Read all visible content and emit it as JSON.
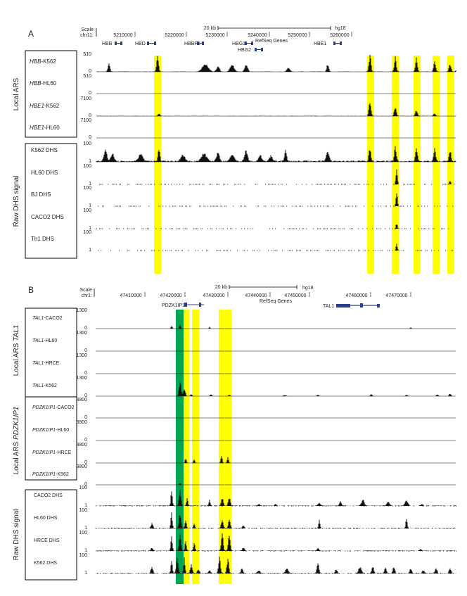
{
  "panel_a": {
    "letter": "A",
    "scale_label": "Scale",
    "chrom_label": "chr11:",
    "scale_bar_label": "20 kb",
    "assembly": "hg18",
    "coords": [
      "5210000",
      "5220000",
      "5230000",
      "5240000",
      "5250000",
      "5260000"
    ],
    "refseq_label": "RefSeq Genes",
    "genes": [
      "HBB",
      "HBD",
      "HBBP1",
      "HBG1",
      "HBG2",
      "HBE1"
    ],
    "group_labels": [
      "Local ARS",
      "Raw DHS signal"
    ],
    "tracks": [
      {
        "gene": "HBB",
        "cell": "-K562",
        "max": "510",
        "min": "0"
      },
      {
        "gene": "HBB",
        "cell": "-HL60",
        "max": "510",
        "min": "0"
      },
      {
        "gene": "HBE1",
        "cell": "-K562",
        "max": "7100",
        "min": "0"
      },
      {
        "gene": "HBE1",
        "cell": "-HL60",
        "max": "7100",
        "min": "0"
      }
    ],
    "dhs_tracks": [
      {
        "name": "K562 DHS",
        "max": "100",
        "min": "1"
      },
      {
        "name": "HL60 DHS",
        "max": "100",
        "min": "1"
      },
      {
        "name": "BJ DHS",
        "max": "100",
        "min": "1"
      },
      {
        "name": "CACO2 DHS",
        "max": "100",
        "min": "1"
      },
      {
        "name": "Th1 DHS",
        "max": "100",
        "min": "1"
      }
    ],
    "highlight_color": "#ffff00"
  },
  "panel_b": {
    "letter": "B",
    "scale_label": "Scale",
    "chrom_label": "chr1:",
    "scale_bar_label": "20 kb",
    "assembly": "hg18",
    "coords": [
      "47410000",
      "47420000",
      "47430000",
      "47440000",
      "47450000",
      "47460000",
      "47470000"
    ],
    "refseq_label": "RefSeq Genes",
    "genes": [
      "PDZK1IP1",
      "TAL1"
    ],
    "group_label_1_prefix": "Local ARS ",
    "group_label_1_gene": "TAL1",
    "group_label_2_prefix": "Local ARS ",
    "group_label_2_gene": "PDZK1IP1",
    "group_label_3": "Raw DHS signal",
    "tracks_tal1": [
      {
        "gene": "TAL1",
        "cell": "-CACO2",
        "max": "1300",
        "min": "0"
      },
      {
        "gene": "TAL1",
        "cell": "-HL60",
        "max": "1300",
        "min": "0"
      },
      {
        "gene": "TAL1",
        "cell": "-HRCE",
        "max": "1300",
        "min": "0"
      },
      {
        "gene": "TAL1",
        "cell": "-K562",
        "max": "1300",
        "min": "0"
      }
    ],
    "tracks_pdzk": [
      {
        "gene": "PDZK1IP1",
        "cell": "-CACO2",
        "max": "3800",
        "min": "0"
      },
      {
        "gene": "PDZK1IP1",
        "cell": "-HL60",
        "max": "3800",
        "min": "0"
      },
      {
        "gene": "PDZK1IP1",
        "cell": "-HRCE",
        "max": "3800",
        "min": "0"
      },
      {
        "gene": "PDZK1IP1",
        "cell": "-K562",
        "max": "3800",
        "min": "0"
      }
    ],
    "dhs_tracks": [
      {
        "name": "CACO2 DHS",
        "max": "100",
        "min": "1"
      },
      {
        "name": "HL60 DHS",
        "max": "100",
        "min": "1"
      },
      {
        "name": "HRCE DHS",
        "max": "100",
        "min": "1"
      },
      {
        "name": "K562 DHS",
        "max": "100",
        "min": "1"
      }
    ],
    "highlight_color": "#ffff00",
    "green_color": "#00a651"
  }
}
